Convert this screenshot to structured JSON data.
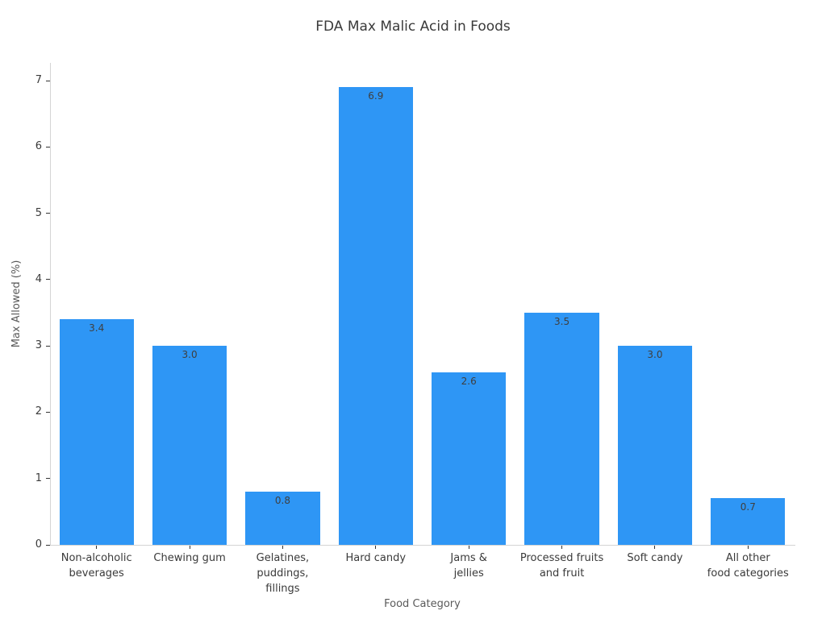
{
  "chart_data": {
    "type": "bar",
    "title": "FDA Max Malic Acid in Foods",
    "xlabel": "Food Category",
    "ylabel": "Max Allowed (%)",
    "categories": [
      "Non-alcoholic\nbeverages",
      "Chewing gum",
      "Gelatines,\npuddings,\nfillings",
      "Hard candy",
      "Jams &\njellies",
      "Processed fruits\nand fruit",
      "Soft candy",
      "All other\nfood categories"
    ],
    "values": [
      3.4,
      3.0,
      0.8,
      6.9,
      2.6,
      3.5,
      3.0,
      0.7
    ],
    "bar_labels": [
      "3.4",
      "3.0",
      "0.8",
      "6.9",
      "2.6",
      "3.5",
      "3.0",
      "0.7"
    ],
    "y_ticks": [
      0,
      1,
      2,
      3,
      4,
      5,
      6,
      7
    ],
    "ylim": [
      0,
      7.27
    ],
    "bar_color": "#2E96F5",
    "grid": false,
    "legend": "none"
  }
}
